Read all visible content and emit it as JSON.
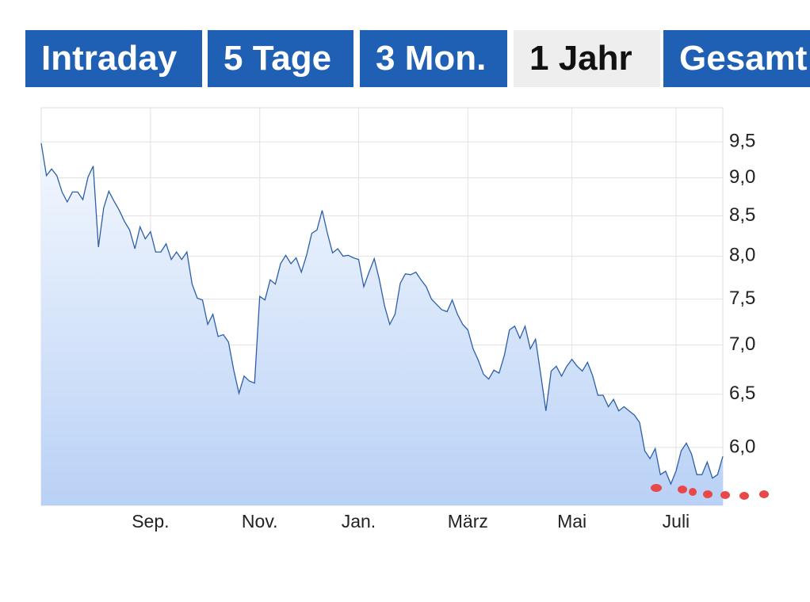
{
  "tabs": [
    "Intraday",
    "5 Tage",
    "3 Mon.",
    "1 Jahr",
    "Gesamt"
  ],
  "active_tab": 3,
  "chart_data": {
    "type": "area",
    "color": "#2c5fa8",
    "ylog": true,
    "grid": true,
    "ylim": [
      5.5,
      10.0
    ],
    "yticks": [
      {
        "value": 6.0,
        "label": "6,0"
      },
      {
        "value": 6.5,
        "label": "6,5"
      },
      {
        "value": 7.0,
        "label": "7,0"
      },
      {
        "value": 7.5,
        "label": "7,5"
      },
      {
        "value": 8.0,
        "label": "8,0"
      },
      {
        "value": 8.5,
        "label": "8,5"
      },
      {
        "value": 9.0,
        "label": "9,0"
      },
      {
        "value": 9.5,
        "label": "9,5"
      }
    ],
    "categories": [
      null,
      null,
      null,
      null,
      null,
      null,
      null,
      null,
      null,
      null,
      null,
      null,
      null,
      null,
      null,
      null,
      null,
      null,
      null,
      null,
      null,
      "Sep.",
      null,
      null,
      null,
      null,
      null,
      null,
      null,
      null,
      null,
      null,
      null,
      null,
      null,
      null,
      null,
      null,
      null,
      null,
      null,
      null,
      "Nov.",
      null,
      null,
      null,
      null,
      null,
      null,
      null,
      null,
      null,
      null,
      null,
      null,
      null,
      null,
      null,
      null,
      null,
      null,
      "Jan.",
      null,
      null,
      null,
      null,
      null,
      null,
      null,
      null,
      null,
      null,
      null,
      null,
      null,
      null,
      null,
      null,
      null,
      null,
      null,
      null,
      "März",
      null,
      null,
      null,
      null,
      null,
      null,
      null,
      null,
      null,
      null,
      null,
      null,
      null,
      null,
      null,
      null,
      null,
      null,
      null,
      "Mai",
      null,
      null,
      null,
      null,
      null,
      null,
      null,
      null,
      null,
      null,
      null,
      null,
      null,
      null,
      null,
      null,
      null,
      null,
      null,
      "Juli",
      null,
      null,
      null,
      null,
      null,
      null,
      null,
      null,
      null
    ],
    "values": [
      9.48,
      9.03,
      9.12,
      9.03,
      8.81,
      8.68,
      8.81,
      8.81,
      8.71,
      9.01,
      9.16,
      8.11,
      8.6,
      8.82,
      8.69,
      8.57,
      8.43,
      8.32,
      8.09,
      8.36,
      8.21,
      8.3,
      8.05,
      8.05,
      8.15,
      7.96,
      8.05,
      7.96,
      8.05,
      7.67,
      7.51,
      7.49,
      7.22,
      7.33,
      7.09,
      7.11,
      7.03,
      6.74,
      6.51,
      6.68,
      6.63,
      6.61,
      7.53,
      7.49,
      7.72,
      7.67,
      7.91,
      8.01,
      7.91,
      7.98,
      7.81,
      8.01,
      8.28,
      8.32,
      8.57,
      8.28,
      8.04,
      8.09,
      8.0,
      8.01,
      7.98,
      7.96,
      7.64,
      7.81,
      7.97,
      7.72,
      7.42,
      7.22,
      7.33,
      7.68,
      7.79,
      7.78,
      7.81,
      7.72,
      7.64,
      7.5,
      7.44,
      7.38,
      7.36,
      7.49,
      7.33,
      7.22,
      7.16,
      6.96,
      6.84,
      6.7,
      6.65,
      6.74,
      6.71,
      6.89,
      7.16,
      7.2,
      7.07,
      7.2,
      6.96,
      7.06,
      6.7,
      6.34,
      6.73,
      6.78,
      6.68,
      6.78,
      6.85,
      6.78,
      6.73,
      6.82,
      6.68,
      6.49,
      6.49,
      6.38,
      6.45,
      6.34,
      6.38,
      6.34,
      6.3,
      6.23,
      5.97,
      5.9,
      5.99,
      5.76,
      5.79,
      5.68,
      5.79,
      5.97,
      6.04,
      5.94,
      5.76,
      5.76,
      5.87,
      5.73,
      5.76,
      5.92
    ]
  }
}
